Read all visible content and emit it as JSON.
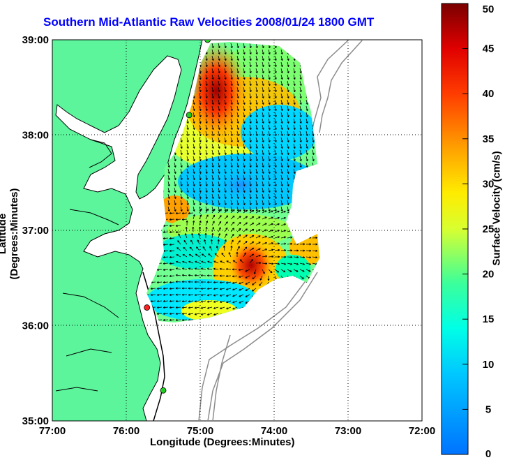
{
  "title": "Southern Mid-Atlantic Raw Velocities 2008/01/24 1800 GMT",
  "map": {
    "type": "current-velocity-map",
    "lon_range": [
      -77,
      -72
    ],
    "lat_range": [
      35,
      39
    ],
    "x_ticks": [
      "77:00",
      "76:00",
      "75:00",
      "74:00",
      "73:00",
      "72:00"
    ],
    "y_ticks": [
      "39:00",
      "38:00",
      "37:00",
      "36:00",
      "35:00"
    ],
    "xlabel": "Longitude (Degrees:Minutes)",
    "ylabel": "Latitude (Degrees:Minutes)",
    "grid": "dotted",
    "land_color": "#5cf59c",
    "contour_color": "#8c8c8c",
    "stations": [
      {
        "color": "#22cc22",
        "lon": -74.9,
        "lat": 39.0
      },
      {
        "color": "#22cc22",
        "lon": -75.15,
        "lat": 38.21
      },
      {
        "color": "#ff2222",
        "lon": -75.72,
        "lat": 36.19
      },
      {
        "color": "#22cc22",
        "lon": -75.5,
        "lat": 35.32
      }
    ]
  },
  "colorbar": {
    "label": "Surface Velocity (cm/s)",
    "min": 0,
    "max": 50,
    "ticks": [
      "50",
      "45",
      "40",
      "35",
      "30",
      "25",
      "20",
      "15",
      "10",
      "5",
      "0"
    ]
  }
}
